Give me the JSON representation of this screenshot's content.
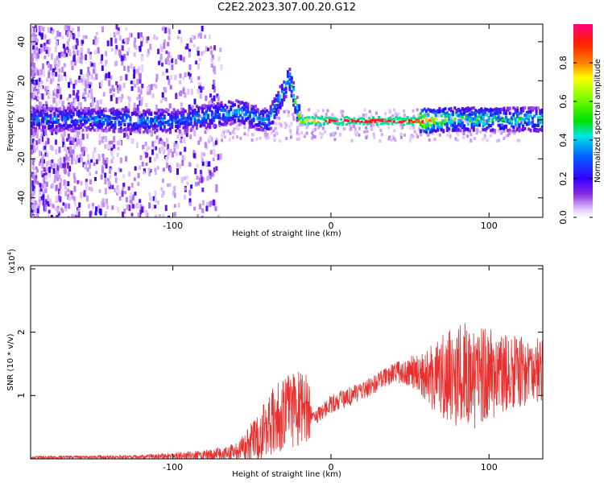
{
  "title": "C2E2.2023.307.00.20.G12",
  "chart_data": [
    {
      "type": "heatmap",
      "xlabel": "Height of straight line (km)",
      "ylabel": "Frequency (Hz)",
      "xlim": [
        -190,
        134
      ],
      "ylim": [
        -50,
        49
      ],
      "xticks": [
        "-100",
        "0",
        "100"
      ],
      "yticks": [
        "-40",
        "-20",
        "0",
        "20",
        "40"
      ],
      "colorbar": {
        "label": "Normalized spectral amplitude",
        "range": [
          0,
          1
        ],
        "ticks": [
          "0.0",
          "0.2",
          "0.4",
          "0.6",
          "0.8"
        ]
      },
      "ridge": [
        {
          "x": -150,
          "f": 1,
          "amp": 0.35
        },
        {
          "x": -100,
          "f": 0,
          "amp": 0.35
        },
        {
          "x": -60,
          "f": 5,
          "amp": 0.4
        },
        {
          "x": -40,
          "f": 0,
          "amp": 0.4
        },
        {
          "x": -27,
          "f": 22,
          "amp": 0.45
        },
        {
          "x": -20,
          "f": 0,
          "amp": 0.6
        },
        {
          "x": 0,
          "f": 0,
          "amp": 0.95
        },
        {
          "x": 50,
          "f": 0,
          "amp": 0.9
        },
        {
          "x": 80,
          "f": 1,
          "amp": 0.5
        },
        {
          "x": 134,
          "f": 1,
          "amp": 0.45
        }
      ]
    },
    {
      "type": "line",
      "xlabel": "Height of straight line (km)",
      "ylabel": "SNR (10 * v/v)",
      "yscale_label": "(x10",
      "yscale_exp": "4",
      "yscale_close": ")",
      "xlim": [
        -190,
        134
      ],
      "ylim": [
        0,
        3.05
      ],
      "xticks": [
        "-100",
        "0",
        "100"
      ],
      "yticks": [
        "1",
        "2",
        "3"
      ],
      "color": "#e8302f",
      "envelope": [
        {
          "x": -190,
          "base": 0.02,
          "spread": 0.02
        },
        {
          "x": -120,
          "base": 0.03,
          "spread": 0.03
        },
        {
          "x": -80,
          "base": 0.05,
          "spread": 0.08
        },
        {
          "x": -60,
          "base": 0.08,
          "spread": 0.15
        },
        {
          "x": -45,
          "base": 0.3,
          "spread": 0.4
        },
        {
          "x": -35,
          "base": 0.6,
          "spread": 0.6
        },
        {
          "x": -14,
          "base": 0.8,
          "spread": 0.6
        },
        {
          "x": -12,
          "base": 0.6,
          "spread": 0.1
        },
        {
          "x": 0,
          "base": 0.85,
          "spread": 0.15
        },
        {
          "x": 20,
          "base": 1.05,
          "spread": 0.15
        },
        {
          "x": 40,
          "base": 1.35,
          "spread": 0.15
        },
        {
          "x": 55,
          "base": 1.35,
          "spread": 0.3
        },
        {
          "x": 70,
          "base": 1.2,
          "spread": 0.7
        },
        {
          "x": 90,
          "base": 1.25,
          "spread": 0.9
        },
        {
          "x": 110,
          "base": 1.3,
          "spread": 0.6
        },
        {
          "x": 134,
          "base": 1.35,
          "spread": 0.5
        }
      ]
    }
  ]
}
